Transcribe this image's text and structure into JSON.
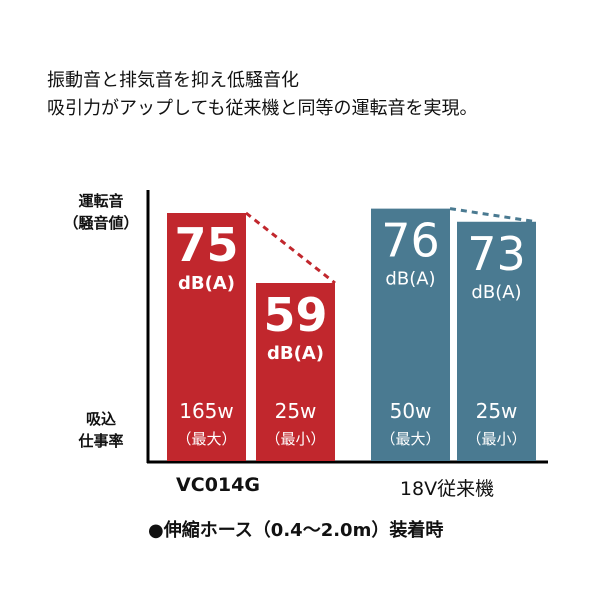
{
  "headline": [
    "振動音と排気音を抑え低騒音化",
    "吸引力がアップしても従来機と同等の運転音を実現。"
  ],
  "y_label_top": [
    "運転音",
    "（騒音値）"
  ],
  "y_label_bottom": [
    "吸込",
    "仕事率"
  ],
  "footnote": "●伸縮ホース（0.4〜2.0m）装着時",
  "colors": {
    "red": "#c1272d",
    "blue": "#4a7a91"
  },
  "chart_data": {
    "type": "bar",
    "unit": "dB(A)",
    "groups": [
      {
        "name": "VC014G",
        "color": "#c1272d",
        "bars": [
          {
            "value": 75,
            "power": "165w",
            "mode": "（最大）"
          },
          {
            "value": 59,
            "power": "25w",
            "mode": "（最小）"
          }
        ]
      },
      {
        "name": "18V従来機",
        "color": "#4a7a91",
        "bars": [
          {
            "value": 76,
            "power": "50w",
            "mode": "（最大）"
          },
          {
            "value": 73,
            "power": "25w",
            "mode": "（最小）"
          }
        ]
      }
    ]
  }
}
